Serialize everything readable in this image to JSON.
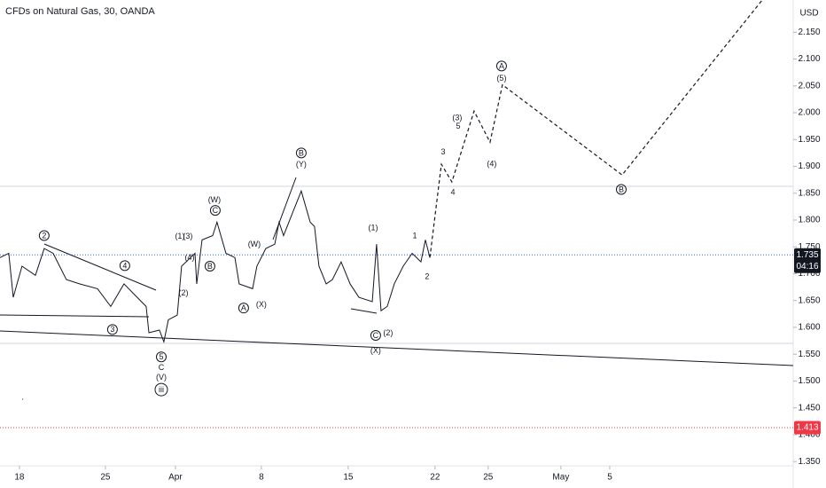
{
  "chart_data": {
    "type": "line",
    "title": "CFDs on Natural Gas, 30, OANDA",
    "y_unit": "USD",
    "xlim": [
      -1.13,
      45.0
    ],
    "ylim": [
      1.342,
      2.21
    ],
    "xticks": [
      {
        "value": 0,
        "label": "18"
      },
      {
        "value": 5,
        "label": "25"
      },
      {
        "value": 9.07,
        "label": "Apr"
      },
      {
        "value": 14.07,
        "label": "8"
      },
      {
        "value": 19.12,
        "label": "15"
      },
      {
        "value": 24.17,
        "label": "22"
      },
      {
        "value": 27.26,
        "label": "25"
      },
      {
        "value": 31.49,
        "label": "May"
      },
      {
        "value": 34.33,
        "label": "5"
      }
    ],
    "yticks": [
      {
        "value": 1.35,
        "label": "1.350"
      },
      {
        "value": 1.4,
        "label": "1.400"
      },
      {
        "value": 1.45,
        "label": "1.450"
      },
      {
        "value": 1.5,
        "label": "1.500"
      },
      {
        "value": 1.55,
        "label": "1.550"
      },
      {
        "value": 1.6,
        "label": "1.600"
      },
      {
        "value": 1.65,
        "label": "1.650"
      },
      {
        "value": 1.7,
        "label": "1.700"
      },
      {
        "value": 1.75,
        "label": "1.750"
      },
      {
        "value": 1.8,
        "label": "1.800"
      },
      {
        "value": 1.85,
        "label": "1.850"
      },
      {
        "value": 1.9,
        "label": "1.900"
      },
      {
        "value": 1.95,
        "label": "1.950"
      },
      {
        "value": 2.0,
        "label": "2.000"
      },
      {
        "value": 2.05,
        "label": "2.050"
      },
      {
        "value": 2.1,
        "label": "2.100"
      },
      {
        "value": 2.15,
        "label": "2.150"
      }
    ],
    "series": [
      {
        "color": "#131722",
        "style": "solid",
        "x": [
          -1.13,
          -0.62,
          -0.36,
          0.15,
          0.93,
          1.44,
          1.96,
          2.73,
          3.51,
          4.54,
          5.31,
          6.08,
          6.6,
          7.37,
          7.53,
          8.14,
          8.4,
          8.66,
          9.18,
          9.43,
          9.95,
          10.21,
          10.31,
          10.62,
          11.24,
          11.49,
          12.01,
          12.53,
          12.78,
          13.56,
          13.81,
          14.33,
          14.85,
          15.1,
          15.36,
          15.88,
          16.39,
          16.91,
          17.16,
          17.42,
          17.84,
          18.2,
          18.71,
          19.23,
          19.74,
          20.52,
          20.77,
          21.03,
          21.39,
          21.8,
          22.32,
          22.84,
          23.35,
          23.61,
          23.87
        ],
        "values": [
          1.73,
          1.738,
          1.656,
          1.714,
          1.697,
          1.747,
          1.738,
          1.689,
          1.681,
          1.672,
          1.639,
          1.681,
          1.664,
          1.639,
          1.59,
          1.595,
          1.573,
          1.614,
          1.623,
          1.714,
          1.73,
          1.738,
          1.681,
          1.763,
          1.771,
          1.796,
          1.738,
          1.73,
          1.681,
          1.672,
          1.714,
          1.747,
          1.755,
          1.796,
          1.771,
          1.813,
          1.854,
          1.796,
          1.788,
          1.714,
          1.681,
          1.689,
          1.722,
          1.681,
          1.656,
          1.648,
          1.755,
          1.631,
          1.639,
          1.681,
          1.714,
          1.738,
          1.722,
          1.763,
          1.73
        ]
      },
      {
        "color": "#131722",
        "style": "dashed",
        "x": [
          23.87,
          24.54,
          25.15,
          26.44,
          27.37,
          28.09,
          35.05,
          43.2
        ],
        "values": [
          1.73,
          1.904,
          1.871,
          2.003,
          1.945,
          2.052,
          1.884,
          2.21
        ]
      }
    ],
    "price_lines": [
      {
        "value": 1.735,
        "label": "1.735",
        "time_label": "04:16",
        "color": "#2962ff",
        "tag_color": "#131722"
      },
      {
        "value": 1.413,
        "label": "1.413",
        "color": "#f23645",
        "tag_color": "#f23645"
      }
    ],
    "annotations": [
      {
        "text": "2",
        "x": 1.44,
        "y": 1.771,
        "circled": true
      },
      {
        "text": "4",
        "x": 6.13,
        "y": 1.715,
        "circled": true
      },
      {
        "text": "3",
        "x": 5.41,
        "y": 1.596,
        "circled": true
      },
      {
        "text": "5",
        "x": 8.25,
        "y": 1.545,
        "circled": true
      },
      {
        "text": "C",
        "x": 8.25,
        "y": 1.525
      },
      {
        "text": "(V)",
        "x": 8.25,
        "y": 1.507
      },
      {
        "text": "iii",
        "x": 8.25,
        "y": 1.484,
        "circled": true
      },
      {
        "text": "(1)",
        "x": 9.33,
        "y": 1.77
      },
      {
        "text": "(3)",
        "x": 9.79,
        "y": 1.77
      },
      {
        "text": "(2)",
        "x": 9.54,
        "y": 1.664
      },
      {
        "text": "(4)",
        "x": 9.9,
        "y": 1.73
      },
      {
        "text": "B",
        "x": 11.08,
        "y": 1.714,
        "circled": true
      },
      {
        "text": "(W)",
        "x": 11.34,
        "y": 1.838
      },
      {
        "text": "C",
        "x": 11.39,
        "y": 1.818,
        "circled": true
      },
      {
        "text": "(W)",
        "x": 13.66,
        "y": 1.755
      },
      {
        "text": "A",
        "x": 13.04,
        "y": 1.636,
        "circled": true
      },
      {
        "text": "(X)",
        "x": 14.07,
        "y": 1.643
      },
      {
        "text": "B",
        "x": 16.39,
        "y": 1.925,
        "circled": true
      },
      {
        "text": "(Y)",
        "x": 16.39,
        "y": 1.904
      },
      {
        "text": "(1)",
        "x": 20.57,
        "y": 1.786
      },
      {
        "text": "C",
        "x": 20.72,
        "y": 1.585,
        "circled": true
      },
      {
        "text": "(X)",
        "x": 20.72,
        "y": 1.557
      },
      {
        "text": "(2)",
        "x": 21.44,
        "y": 1.59
      },
      {
        "text": "1",
        "x": 22.99,
        "y": 1.771
      },
      {
        "text": "2",
        "x": 23.71,
        "y": 1.695
      },
      {
        "text": "3",
        "x": 24.64,
        "y": 1.927
      },
      {
        "text": "4",
        "x": 25.21,
        "y": 1.852
      },
      {
        "text": "(3)",
        "x": 25.46,
        "y": 1.991
      },
      {
        "text": "5",
        "x": 25.52,
        "y": 1.975
      },
      {
        "text": "(4)",
        "x": 27.47,
        "y": 1.905
      },
      {
        "text": "A",
        "x": 28.04,
        "y": 2.087,
        "circled": true
      },
      {
        "text": "(5)",
        "x": 28.04,
        "y": 2.064
      },
      {
        "text": "B",
        "x": 35.0,
        "y": 1.857,
        "circled": true
      }
    ]
  }
}
